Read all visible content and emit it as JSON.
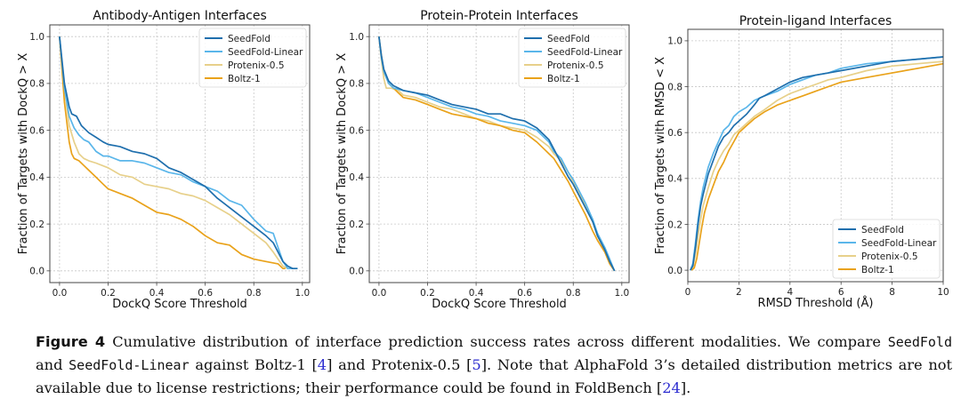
{
  "colors": {
    "SeedFold": "#1f6fad",
    "SeedFold-Linear": "#5ab6ea",
    "Protenix-0.5": "#e7d08a",
    "Boltz-1": "#e9a21a"
  },
  "chart_data": [
    {
      "type": "line",
      "title": "Antibody-Antigen Interfaces",
      "xlabel": "DockQ Score Threshold",
      "ylabel": "Fraction of Targets with DockQ > X",
      "xlim": [
        -0.04,
        1.03
      ],
      "ylim": [
        -0.05,
        1.05
      ],
      "xticks": [
        0.0,
        0.2,
        0.4,
        0.6,
        0.8,
        1.0
      ],
      "xtick_labels": [
        "0.0",
        "0.2",
        "0.4",
        "0.6",
        "0.8",
        "1.0"
      ],
      "yticks": [
        0.0,
        0.2,
        0.4,
        0.6,
        0.8,
        1.0
      ],
      "ytick_labels": [
        "0.0",
        "0.2",
        "0.4",
        "0.6",
        "0.8",
        "1.0"
      ],
      "grid": true,
      "legend_position": "top-right",
      "series": [
        {
          "name": "SeedFold",
          "x": [
            0.0,
            0.02,
            0.04,
            0.05,
            0.07,
            0.09,
            0.1,
            0.12,
            0.15,
            0.18,
            0.2,
            0.25,
            0.3,
            0.35,
            0.4,
            0.45,
            0.5,
            0.55,
            0.6,
            0.65,
            0.7,
            0.75,
            0.8,
            0.85,
            0.88,
            0.9,
            0.92,
            0.94,
            0.96,
            0.98
          ],
          "y": [
            1.0,
            0.8,
            0.7,
            0.67,
            0.66,
            0.62,
            0.61,
            0.59,
            0.57,
            0.55,
            0.54,
            0.53,
            0.51,
            0.5,
            0.48,
            0.44,
            0.42,
            0.39,
            0.36,
            0.31,
            0.27,
            0.23,
            0.19,
            0.15,
            0.12,
            0.08,
            0.04,
            0.02,
            0.01,
            0.01
          ]
        },
        {
          "name": "SeedFold-Linear",
          "x": [
            0.0,
            0.02,
            0.04,
            0.06,
            0.08,
            0.1,
            0.12,
            0.15,
            0.18,
            0.2,
            0.25,
            0.3,
            0.35,
            0.4,
            0.45,
            0.5,
            0.55,
            0.6,
            0.65,
            0.7,
            0.75,
            0.8,
            0.85,
            0.88,
            0.9,
            0.92,
            0.94,
            0.96,
            0.98
          ],
          "y": [
            1.0,
            0.78,
            0.66,
            0.61,
            0.58,
            0.56,
            0.55,
            0.51,
            0.49,
            0.49,
            0.47,
            0.47,
            0.46,
            0.44,
            0.42,
            0.41,
            0.38,
            0.36,
            0.34,
            0.3,
            0.28,
            0.22,
            0.17,
            0.16,
            0.1,
            0.04,
            0.01,
            0.01,
            0.01
          ]
        },
        {
          "name": "Protenix-0.5",
          "x": [
            0.0,
            0.02,
            0.04,
            0.06,
            0.08,
            0.1,
            0.12,
            0.15,
            0.2,
            0.25,
            0.3,
            0.35,
            0.4,
            0.45,
            0.5,
            0.55,
            0.6,
            0.65,
            0.7,
            0.75,
            0.8,
            0.85,
            0.88,
            0.9,
            0.92,
            0.94
          ],
          "y": [
            1.0,
            0.78,
            0.62,
            0.55,
            0.5,
            0.48,
            0.47,
            0.46,
            0.44,
            0.41,
            0.4,
            0.37,
            0.36,
            0.35,
            0.33,
            0.32,
            0.3,
            0.27,
            0.24,
            0.2,
            0.16,
            0.12,
            0.08,
            0.05,
            0.02,
            0.01
          ]
        },
        {
          "name": "Boltz-1",
          "x": [
            0.0,
            0.02,
            0.04,
            0.05,
            0.06,
            0.08,
            0.1,
            0.12,
            0.15,
            0.18,
            0.2,
            0.25,
            0.3,
            0.35,
            0.4,
            0.45,
            0.5,
            0.55,
            0.6,
            0.65,
            0.7,
            0.75,
            0.8,
            0.85,
            0.9,
            0.92,
            0.93
          ],
          "y": [
            1.0,
            0.72,
            0.55,
            0.5,
            0.48,
            0.47,
            0.45,
            0.43,
            0.4,
            0.37,
            0.35,
            0.33,
            0.31,
            0.28,
            0.25,
            0.24,
            0.22,
            0.19,
            0.15,
            0.12,
            0.11,
            0.07,
            0.05,
            0.04,
            0.03,
            0.01,
            0.01
          ]
        }
      ]
    },
    {
      "type": "line",
      "title": "Protein-Protein Interfaces",
      "xlabel": "DockQ Score Threshold",
      "ylabel": "Fraction of Targets with DockQ > X",
      "xlim": [
        -0.04,
        1.03
      ],
      "ylim": [
        -0.05,
        1.05
      ],
      "xticks": [
        0.0,
        0.2,
        0.4,
        0.6,
        0.8,
        1.0
      ],
      "xtick_labels": [
        "0.0",
        "0.2",
        "0.4",
        "0.6",
        "0.8",
        "1.0"
      ],
      "yticks": [
        0.0,
        0.2,
        0.4,
        0.6,
        0.8,
        1.0
      ],
      "ytick_labels": [
        "0.0",
        "0.2",
        "0.4",
        "0.6",
        "0.8",
        "1.0"
      ],
      "grid": true,
      "legend_position": "top-right",
      "series": [
        {
          "name": "SeedFold",
          "x": [
            0.0,
            0.01,
            0.02,
            0.04,
            0.06,
            0.1,
            0.15,
            0.2,
            0.25,
            0.3,
            0.35,
            0.4,
            0.45,
            0.5,
            0.55,
            0.6,
            0.65,
            0.68,
            0.7,
            0.72,
            0.75,
            0.78,
            0.8,
            0.85,
            0.88,
            0.9,
            0.93,
            0.95,
            0.97
          ],
          "y": [
            1.0,
            0.92,
            0.86,
            0.81,
            0.79,
            0.77,
            0.76,
            0.75,
            0.73,
            0.71,
            0.7,
            0.69,
            0.67,
            0.67,
            0.65,
            0.64,
            0.61,
            0.58,
            0.56,
            0.52,
            0.46,
            0.4,
            0.37,
            0.27,
            0.21,
            0.15,
            0.09,
            0.04,
            0.0
          ]
        },
        {
          "name": "SeedFold-Linear",
          "x": [
            0.0,
            0.01,
            0.02,
            0.04,
            0.06,
            0.1,
            0.15,
            0.2,
            0.25,
            0.3,
            0.35,
            0.4,
            0.45,
            0.5,
            0.55,
            0.6,
            0.65,
            0.7,
            0.72,
            0.75,
            0.78,
            0.8,
            0.85,
            0.88,
            0.9,
            0.93,
            0.95,
            0.97
          ],
          "y": [
            1.0,
            0.91,
            0.85,
            0.8,
            0.78,
            0.77,
            0.76,
            0.74,
            0.72,
            0.7,
            0.69,
            0.67,
            0.66,
            0.64,
            0.63,
            0.62,
            0.6,
            0.55,
            0.51,
            0.48,
            0.42,
            0.39,
            0.29,
            0.22,
            0.16,
            0.1,
            0.05,
            0.0
          ]
        },
        {
          "name": "Protenix-0.5",
          "x": [
            0.0,
            0.01,
            0.02,
            0.03,
            0.05,
            0.08,
            0.1,
            0.15,
            0.2,
            0.25,
            0.3,
            0.35,
            0.4,
            0.45,
            0.5,
            0.55,
            0.6,
            0.65,
            0.7,
            0.72,
            0.75,
            0.78,
            0.8,
            0.85,
            0.88,
            0.9,
            0.93,
            0.95,
            0.97
          ],
          "y": [
            1.0,
            0.9,
            0.82,
            0.78,
            0.78,
            0.77,
            0.75,
            0.74,
            0.72,
            0.7,
            0.69,
            0.67,
            0.65,
            0.64,
            0.62,
            0.61,
            0.6,
            0.57,
            0.53,
            0.5,
            0.47,
            0.42,
            0.38,
            0.28,
            0.21,
            0.15,
            0.09,
            0.04,
            0.0
          ]
        },
        {
          "name": "Boltz-1",
          "x": [
            0.0,
            0.01,
            0.02,
            0.04,
            0.06,
            0.08,
            0.1,
            0.15,
            0.2,
            0.25,
            0.3,
            0.35,
            0.4,
            0.45,
            0.5,
            0.55,
            0.6,
            0.65,
            0.68,
            0.7,
            0.72,
            0.75,
            0.78,
            0.8,
            0.85,
            0.88,
            0.9,
            0.93,
            0.95,
            0.97
          ],
          "y": [
            1.0,
            0.92,
            0.85,
            0.8,
            0.78,
            0.76,
            0.74,
            0.73,
            0.71,
            0.69,
            0.67,
            0.66,
            0.65,
            0.63,
            0.62,
            0.6,
            0.59,
            0.55,
            0.52,
            0.5,
            0.48,
            0.43,
            0.38,
            0.34,
            0.24,
            0.17,
            0.13,
            0.08,
            0.03,
            0.0
          ]
        }
      ]
    },
    {
      "type": "line",
      "title": "Protein-ligand Interfaces",
      "xlabel": "RMSD Threshold (Å)",
      "ylabel": "Fraction of Targets with RMSD < X",
      "xlim": [
        0,
        10
      ],
      "ylim": [
        -0.05,
        1.05
      ],
      "xticks": [
        0,
        2,
        4,
        6,
        8,
        10
      ],
      "xtick_labels": [
        "0",
        "2",
        "4",
        "6",
        "8",
        "10"
      ],
      "yticks": [
        0.0,
        0.2,
        0.4,
        0.6,
        0.8,
        1.0
      ],
      "ytick_labels": [
        "0.0",
        "0.2",
        "0.4",
        "0.6",
        "0.8",
        "1.0"
      ],
      "grid": true,
      "legend_position": "lower-right",
      "series": [
        {
          "name": "SeedFold",
          "x": [
            0.1,
            0.2,
            0.3,
            0.4,
            0.5,
            0.6,
            0.8,
            1.0,
            1.2,
            1.4,
            1.6,
            1.8,
            2.0,
            2.3,
            2.6,
            2.8,
            3.0,
            3.5,
            4.0,
            4.5,
            5.0,
            5.5,
            6.0,
            7.0,
            8.0,
            9.0,
            10.0
          ],
          "y": [
            0.0,
            0.02,
            0.1,
            0.2,
            0.28,
            0.33,
            0.42,
            0.48,
            0.54,
            0.58,
            0.6,
            0.63,
            0.65,
            0.68,
            0.72,
            0.75,
            0.76,
            0.79,
            0.82,
            0.84,
            0.85,
            0.86,
            0.87,
            0.89,
            0.91,
            0.92,
            0.93
          ]
        },
        {
          "name": "SeedFold-Linear",
          "x": [
            0.1,
            0.2,
            0.3,
            0.4,
            0.5,
            0.6,
            0.8,
            1.0,
            1.2,
            1.4,
            1.6,
            1.8,
            2.0,
            2.3,
            2.6,
            2.8,
            3.0,
            3.5,
            4.0,
            4.5,
            5.0,
            5.5,
            6.0,
            7.0,
            8.0,
            9.0,
            10.0
          ],
          "y": [
            0.0,
            0.03,
            0.12,
            0.22,
            0.3,
            0.36,
            0.45,
            0.51,
            0.56,
            0.61,
            0.63,
            0.67,
            0.69,
            0.71,
            0.74,
            0.75,
            0.76,
            0.78,
            0.81,
            0.83,
            0.85,
            0.86,
            0.88,
            0.9,
            0.91,
            0.92,
            0.93
          ]
        },
        {
          "name": "Protenix-0.5",
          "x": [
            0.1,
            0.2,
            0.3,
            0.4,
            0.5,
            0.6,
            0.8,
            1.0,
            1.2,
            1.4,
            1.6,
            1.8,
            2.0,
            2.3,
            2.6,
            3.0,
            3.5,
            4.0,
            4.5,
            5.0,
            5.5,
            6.0,
            7.0,
            8.0,
            9.0,
            10.0
          ],
          "y": [
            0.0,
            0.01,
            0.07,
            0.15,
            0.22,
            0.28,
            0.36,
            0.43,
            0.48,
            0.52,
            0.55,
            0.59,
            0.61,
            0.64,
            0.67,
            0.7,
            0.74,
            0.77,
            0.79,
            0.81,
            0.83,
            0.84,
            0.87,
            0.89,
            0.9,
            0.91
          ]
        },
        {
          "name": "Boltz-1",
          "x": [
            0.15,
            0.25,
            0.35,
            0.45,
            0.55,
            0.65,
            0.8,
            1.0,
            1.2,
            1.4,
            1.6,
            1.8,
            2.0,
            2.3,
            2.6,
            3.0,
            3.5,
            4.0,
            4.5,
            5.0,
            5.5,
            6.0,
            7.0,
            8.0,
            9.0,
            10.0
          ],
          "y": [
            0.0,
            0.01,
            0.05,
            0.12,
            0.19,
            0.25,
            0.31,
            0.37,
            0.43,
            0.47,
            0.52,
            0.56,
            0.6,
            0.63,
            0.66,
            0.69,
            0.72,
            0.74,
            0.76,
            0.78,
            0.8,
            0.82,
            0.84,
            0.86,
            0.88,
            0.9
          ]
        }
      ]
    }
  ],
  "caption": {
    "label": "Figure 4",
    "text_1": "Cumulative distribution of interface prediction success rates across different modalities.  We compare",
    "model_a": "SeedFold",
    "text_2": " and ",
    "model_b": "SeedFold-Linear",
    "text_3": " against Boltz-1 [",
    "ref_1": "4",
    "text_4": "] and Protenix-0.5 [",
    "ref_2": "5",
    "text_5": "]. Note that AlphaFold 3’s detailed distribution metrics are not available due to license restrictions; their performance could be found in FoldBench [",
    "ref_3": "24",
    "text_6": "]."
  }
}
